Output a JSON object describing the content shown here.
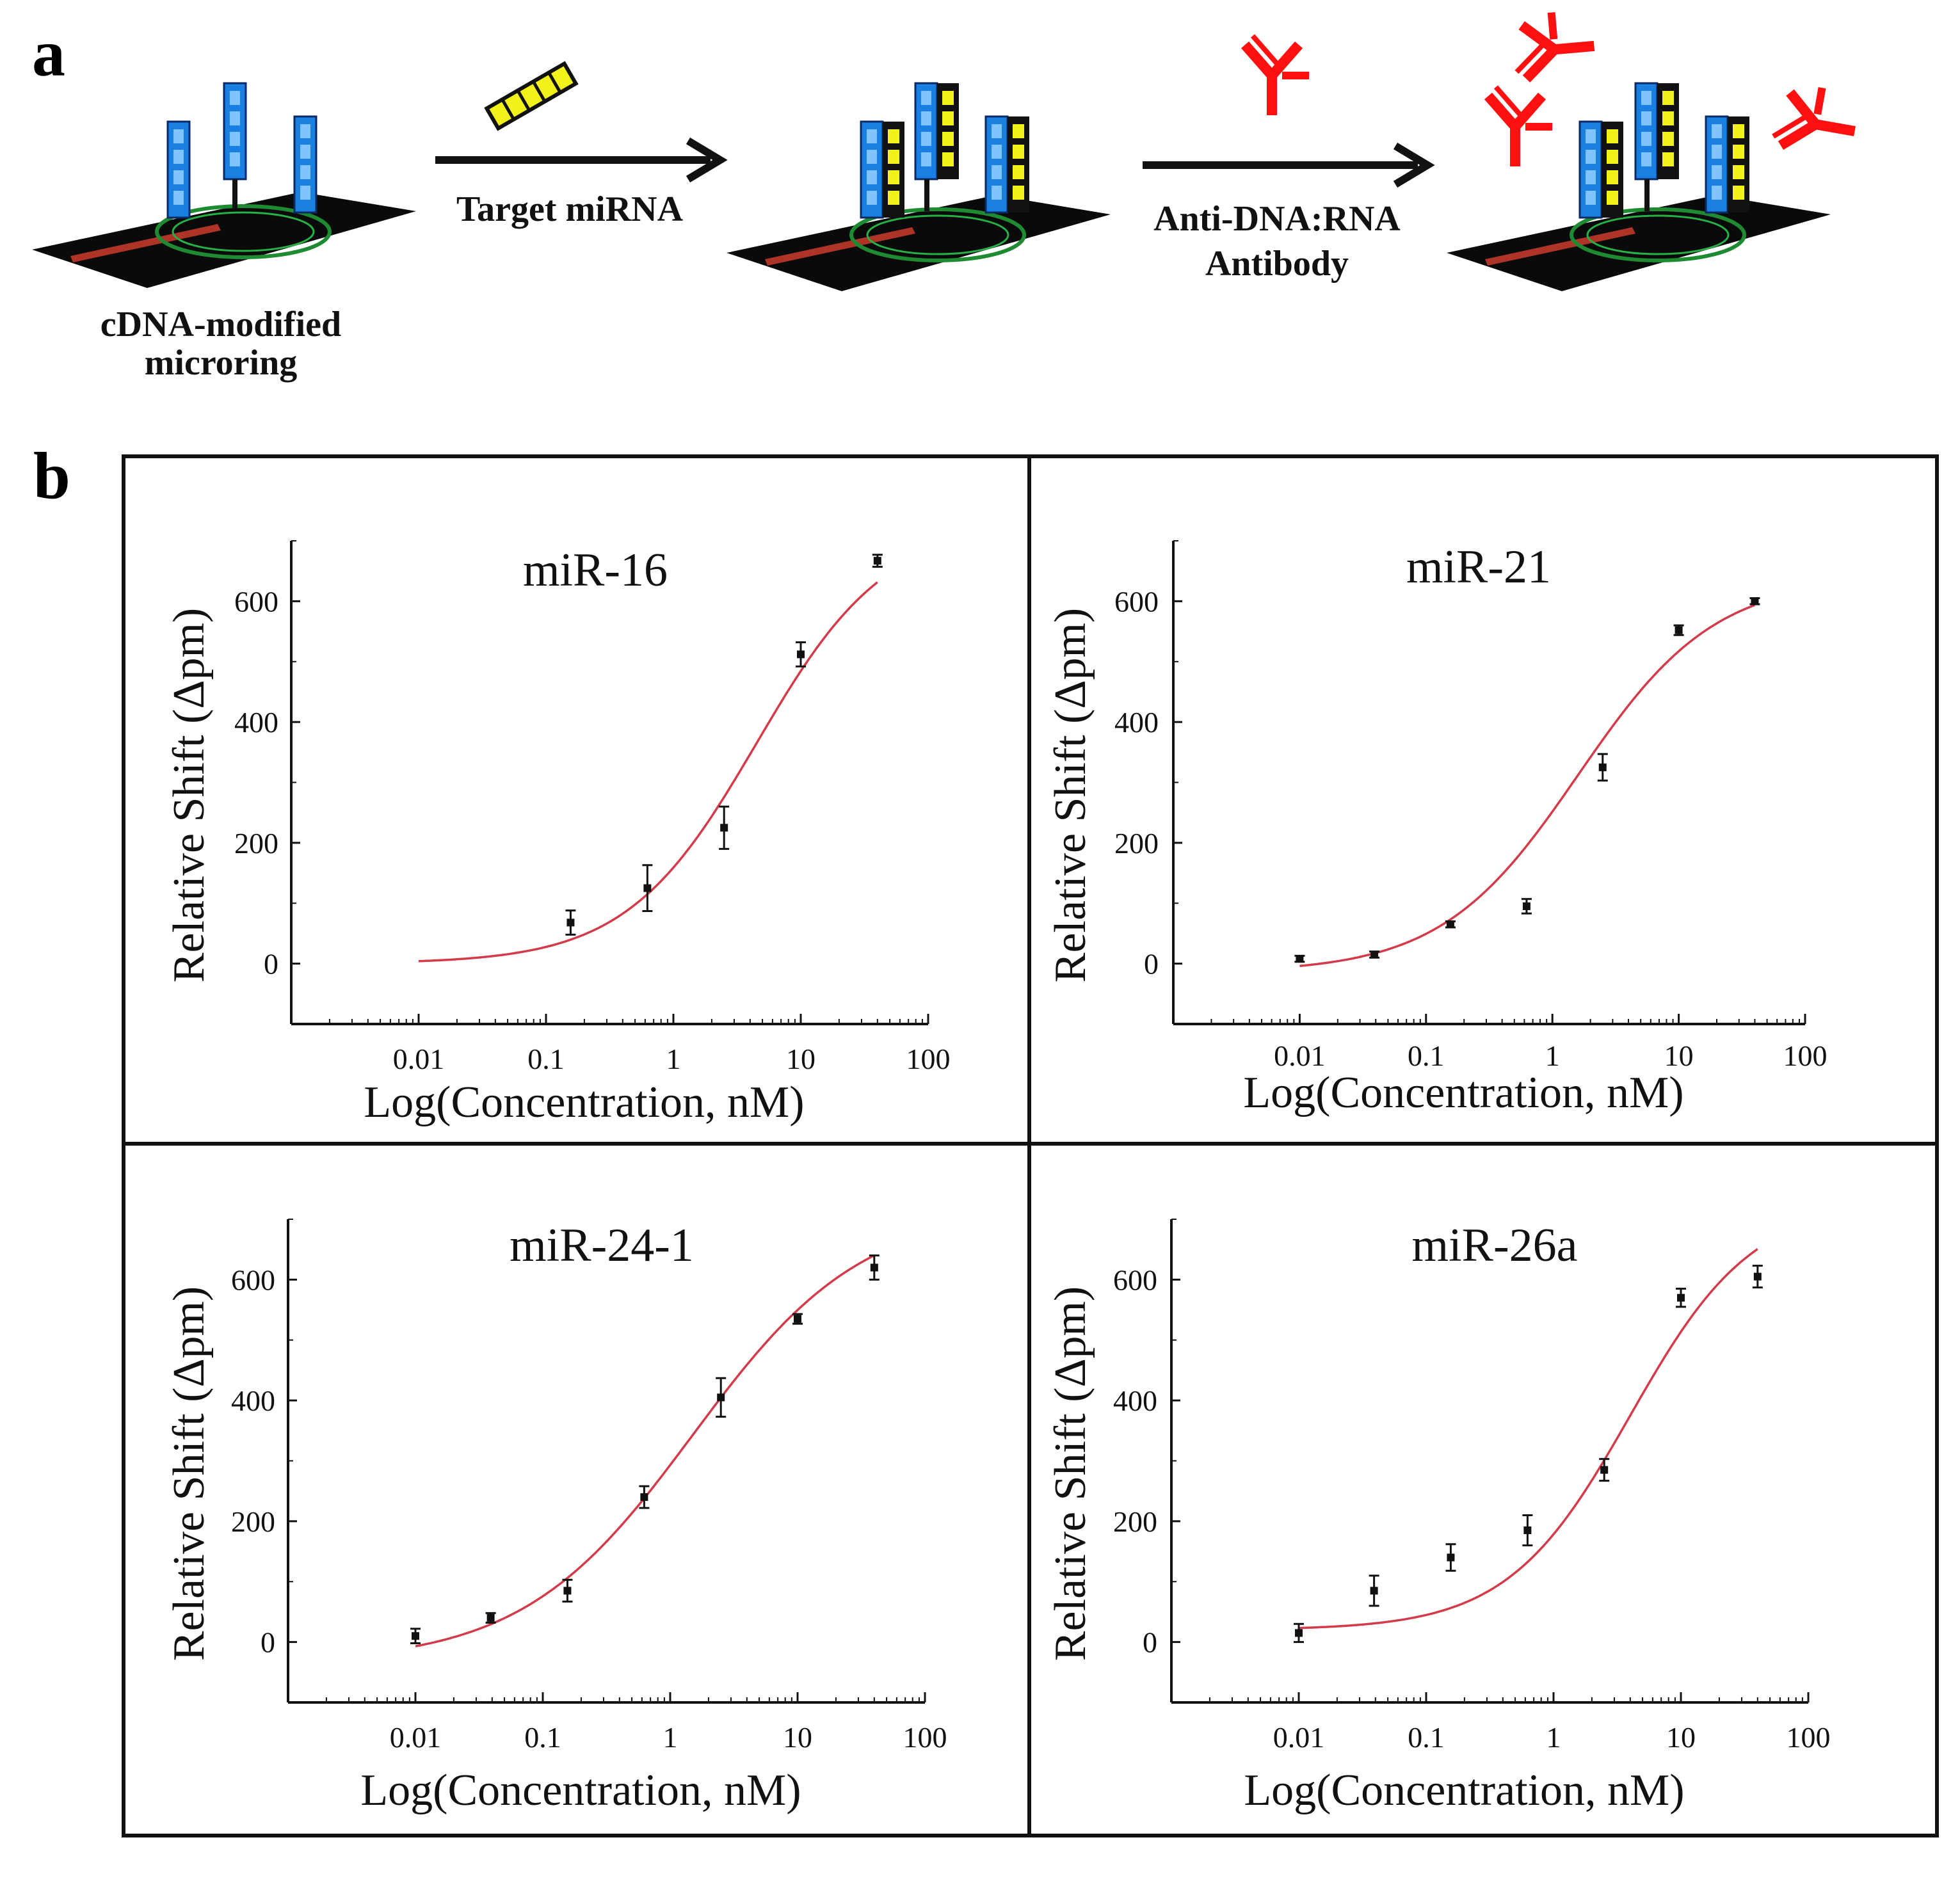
{
  "panel_a": {
    "letter": "a",
    "step1_label_line1": "cDNA-modified",
    "step1_label_line2": "microring",
    "arrow1_label": "Target miRNA",
    "arrow2_label_line1": "Anti-DNA:RNA",
    "arrow2_label_line2": "Antibody"
  },
  "panel_b": {
    "letter": "b"
  },
  "colors": {
    "probe_blue": "#1a7fe0",
    "target_yellow": "#f2f21a",
    "antibody_red": "#ff1010",
    "fit_line": "#d33a4a",
    "chip": "#0a0a0a"
  },
  "chart_data": [
    {
      "type": "scatter",
      "title": "miR-16",
      "xlabel": "Log(Concentration, nM)",
      "ylabel": "Relative Shift (Δpm)",
      "xscale": "log",
      "xlim": [
        0.001,
        100
      ],
      "xticks": [
        0.01,
        0.1,
        1,
        10,
        100
      ],
      "xticklabels": [
        "0.01",
        "0.1",
        "1",
        "10",
        "100"
      ],
      "ylim": [
        -100,
        700
      ],
      "yticks": [
        0,
        200,
        400,
        600
      ],
      "yticklabels": [
        "0",
        "200",
        "400",
        "600"
      ],
      "points": [
        {
          "x": 0.156,
          "y": 68,
          "err": 20
        },
        {
          "x": 0.625,
          "y": 125,
          "err": 38
        },
        {
          "x": 2.5,
          "y": 225,
          "err": 35
        },
        {
          "x": 10,
          "y": 512,
          "err": 20
        },
        {
          "x": 40,
          "y": 667,
          "err": 10
        }
      ],
      "fit": {
        "xmin": 0.01,
        "xmax": 40,
        "bottom": 0,
        "top": 730,
        "ec50": 4.5,
        "hill": 0.85
      }
    },
    {
      "type": "scatter",
      "title": "miR-21",
      "xlabel": "Log(Concentration, nM)",
      "ylabel": "Relative Shift (Δpm)",
      "xscale": "log",
      "xlim": [
        0.001,
        100
      ],
      "xticks": [
        0.01,
        0.1,
        1,
        10,
        100
      ],
      "xticklabels": [
        "0.01",
        "0.1",
        "1",
        "10",
        "100"
      ],
      "ylim": [
        -100,
        700
      ],
      "yticks": [
        0,
        200,
        400,
        600
      ],
      "yticklabels": [
        "0",
        "200",
        "400",
        "600"
      ],
      "points": [
        {
          "x": 0.01,
          "y": 8,
          "err": 5
        },
        {
          "x": 0.039,
          "y": 15,
          "err": 5
        },
        {
          "x": 0.156,
          "y": 65,
          "err": 5
        },
        {
          "x": 0.625,
          "y": 95,
          "err": 12
        },
        {
          "x": 2.5,
          "y": 325,
          "err": 22
        },
        {
          "x": 10,
          "y": 552,
          "err": 8
        },
        {
          "x": 40,
          "y": 600,
          "err": 5
        }
      ],
      "fit": {
        "xmin": 0.01,
        "xmax": 40,
        "bottom": -15,
        "top": 640,
        "ec50": 1.6,
        "hill": 0.8
      }
    },
    {
      "type": "scatter",
      "title": "miR-24-1",
      "xlabel": "Log(Concentration, nM)",
      "ylabel": "Relative Shift (Δpm)",
      "xscale": "log",
      "xlim": [
        0.001,
        100
      ],
      "xticks": [
        0.01,
        0.1,
        1,
        10,
        100
      ],
      "xticklabels": [
        "0.01",
        "0.1",
        "1",
        "10",
        "100"
      ],
      "ylim": [
        -100,
        700
      ],
      "yticks": [
        0,
        200,
        400,
        600
      ],
      "yticklabels": [
        "0",
        "200",
        "400",
        "600"
      ],
      "points": [
        {
          "x": 0.01,
          "y": 10,
          "err": 12
        },
        {
          "x": 0.039,
          "y": 40,
          "err": 8
        },
        {
          "x": 0.156,
          "y": 85,
          "err": 18
        },
        {
          "x": 0.625,
          "y": 240,
          "err": 18
        },
        {
          "x": 2.5,
          "y": 405,
          "err": 32
        },
        {
          "x": 10,
          "y": 535,
          "err": 8
        },
        {
          "x": 40,
          "y": 620,
          "err": 20
        }
      ],
      "fit": {
        "xmin": 0.01,
        "xmax": 40,
        "bottom": -35,
        "top": 720,
        "ec50": 1.5,
        "hill": 0.65
      }
    },
    {
      "type": "scatter",
      "title": "miR-26a",
      "xlabel": "Log(Concentration, nM)",
      "ylabel": "Relative Shift (Δpm)",
      "xscale": "log",
      "xlim": [
        0.001,
        100
      ],
      "xticks": [
        0.01,
        0.1,
        1,
        10,
        100
      ],
      "xticklabels": [
        "0.01",
        "0.1",
        "1",
        "10",
        "100"
      ],
      "ylim": [
        -100,
        700
      ],
      "yticks": [
        0,
        200,
        400,
        600
      ],
      "yticklabels": [
        "0",
        "200",
        "400",
        "600"
      ],
      "points": [
        {
          "x": 0.01,
          "y": 15,
          "err": 15
        },
        {
          "x": 0.039,
          "y": 85,
          "err": 25
        },
        {
          "x": 0.156,
          "y": 140,
          "err": 22
        },
        {
          "x": 0.625,
          "y": 185,
          "err": 25
        },
        {
          "x": 2.5,
          "y": 285,
          "err": 18
        },
        {
          "x": 10,
          "y": 570,
          "err": 15
        },
        {
          "x": 40,
          "y": 605,
          "err": 18
        }
      ],
      "fit": {
        "xmin": 0.01,
        "xmax": 40,
        "bottom": 20,
        "top": 730,
        "ec50": 4,
        "hill": 0.9
      }
    }
  ]
}
